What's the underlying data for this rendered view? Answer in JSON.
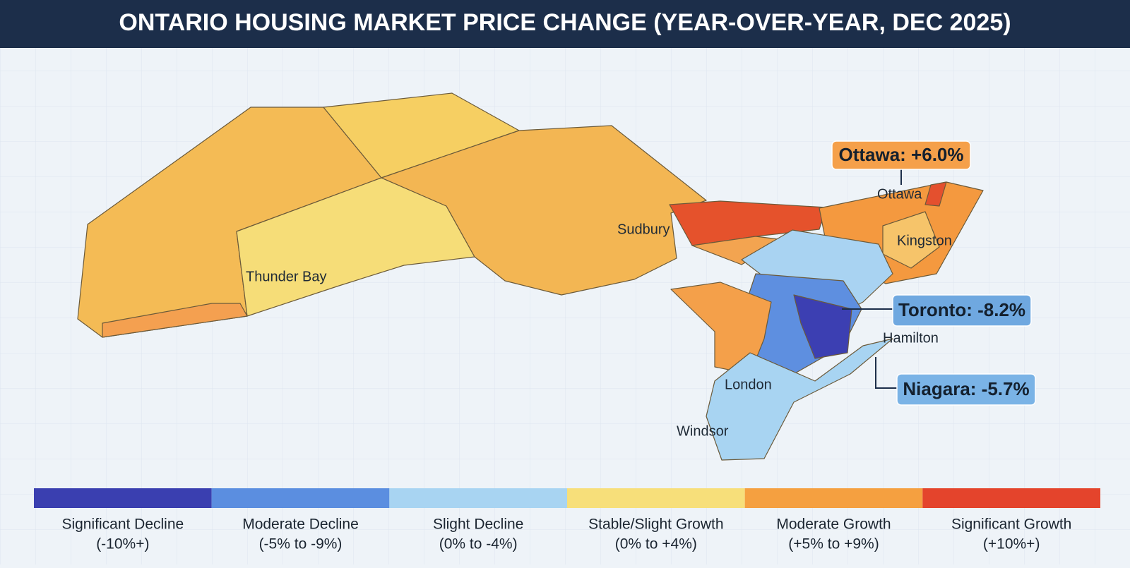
{
  "title": "ONTARIO HOUSING MARKET PRICE CHANGE (YEAR-OVER-YEAR, DEC 2025)",
  "cities": [
    {
      "label": "Thunder Bay"
    },
    {
      "label": "Sudbury"
    },
    {
      "label": "Ottawa"
    },
    {
      "label": "Kingston"
    },
    {
      "label": "Hamilton"
    },
    {
      "label": "London"
    },
    {
      "label": "Windsor"
    }
  ],
  "callouts": [
    {
      "text": "Ottawa: +6.0%",
      "color": "#f5a04a"
    },
    {
      "text": "Toronto: -8.2%",
      "color": "#6fa8e0"
    },
    {
      "text": "Niagara: -5.7%",
      "color": "#7ab3e6"
    }
  ],
  "legend": [
    {
      "label": "Significant Decline",
      "range": "(-10%+)",
      "color": "#3a3fb0"
    },
    {
      "label": "Moderate Decline",
      "range": "(-5% to -9%)",
      "color": "#5b8ee0"
    },
    {
      "label": "Slight Decline",
      "range": "(0% to -4%)",
      "color": "#a8d4f2"
    },
    {
      "label": "Stable/Slight Growth",
      "range": "(0% to +4%)",
      "color": "#f7df7a"
    },
    {
      "label": "Moderate Growth",
      "range": "(+5% to +9%)",
      "color": "#f5a040"
    },
    {
      "label": "Significant Growth",
      "range": "(+10%+)",
      "color": "#e4442c"
    }
  ]
}
